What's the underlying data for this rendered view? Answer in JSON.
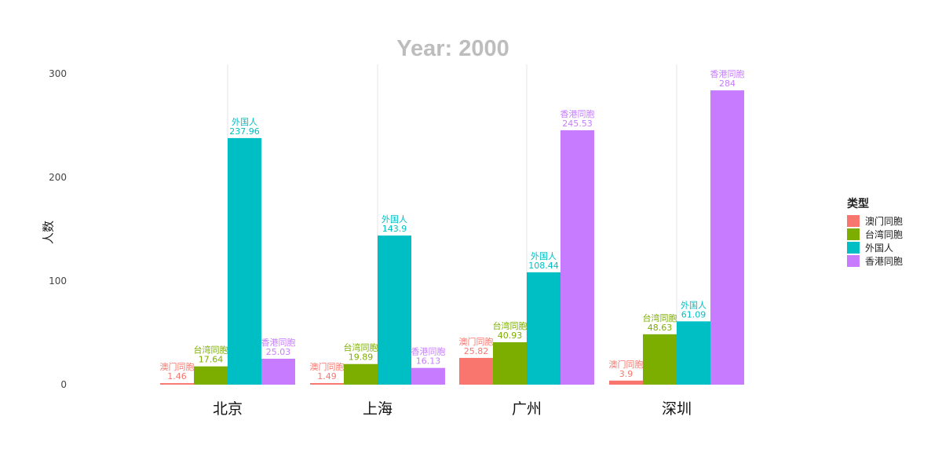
{
  "chart_data": {
    "type": "bar",
    "title": "Year: 2000",
    "ylabel": "人数",
    "xlabel": "",
    "ylim": [
      0,
      300
    ],
    "yticks": [
      0,
      100,
      200,
      300
    ],
    "categories": [
      "北京",
      "上海",
      "广州",
      "深圳"
    ],
    "legend_title": "类型",
    "legend_position": "right",
    "grid": true,
    "series": [
      {
        "name": "澳门同胞",
        "color": "#F8766D",
        "values": [
          1.46,
          1.49,
          25.82,
          3.9
        ]
      },
      {
        "name": "台湾同胞",
        "color": "#7CAE00",
        "values": [
          17.64,
          19.89,
          40.93,
          48.63
        ]
      },
      {
        "name": "外国人",
        "color": "#00BFC4",
        "values": [
          237.96,
          143.9,
          108.44,
          61.09
        ]
      },
      {
        "name": "香港同胞",
        "color": "#C77CFF",
        "values": [
          25.03,
          16.13,
          245.53,
          284
        ]
      }
    ]
  }
}
